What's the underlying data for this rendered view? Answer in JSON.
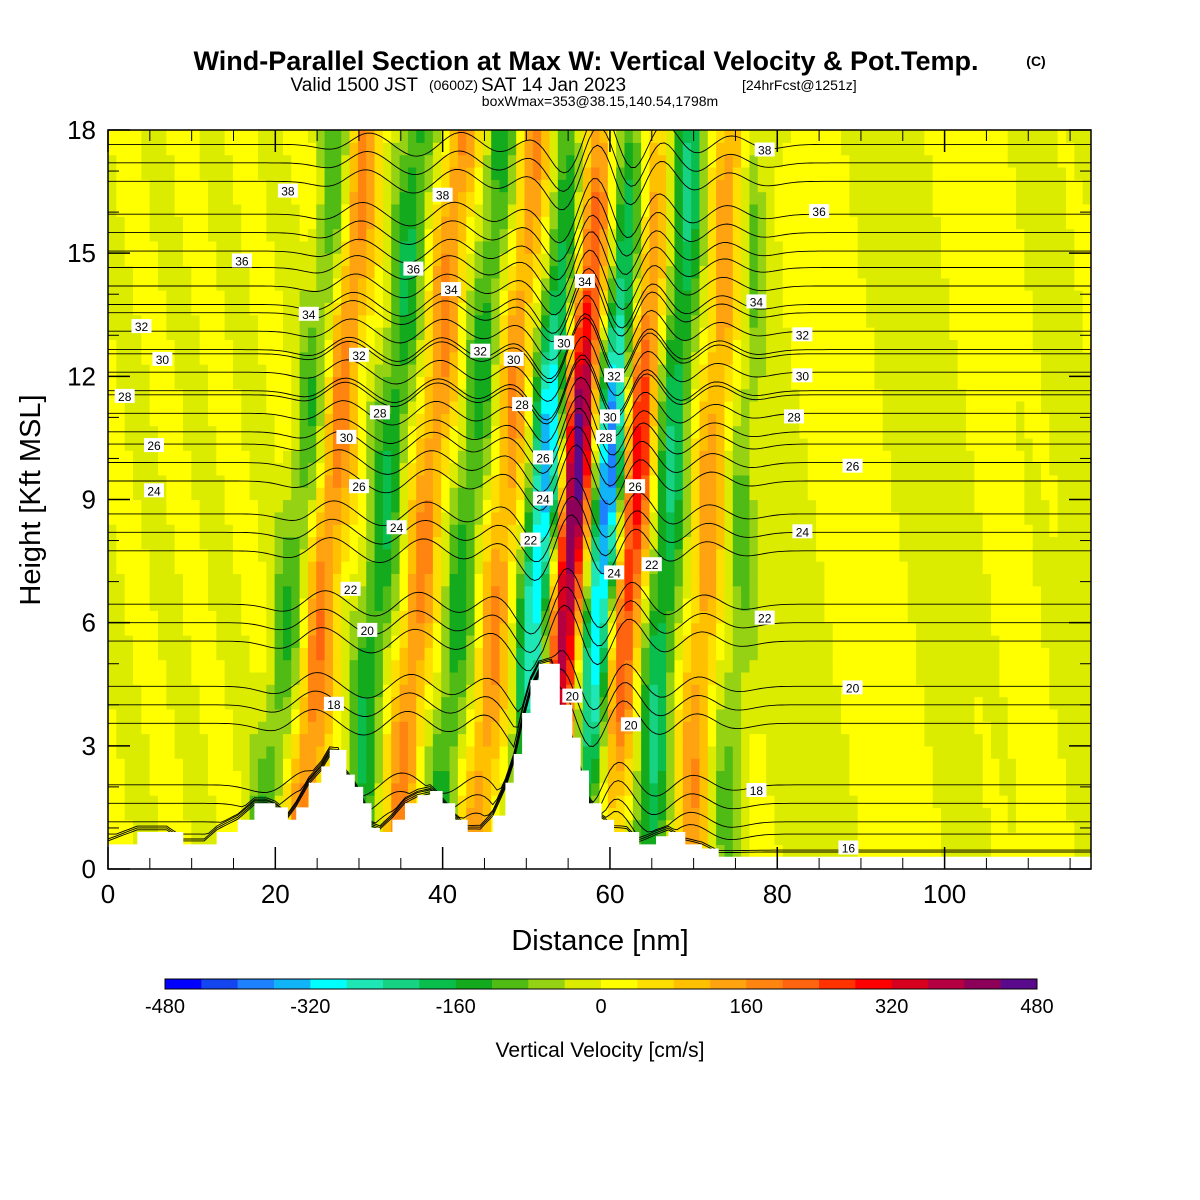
{
  "chart_data": {
    "type": "heatmap",
    "title": "Wind-Parallel Section at Max W: Vertical Velocity & Pot.Temp.",
    "title_mark": "(C)",
    "subtitle_parts": [
      "Valid 1500 JST",
      "(0600Z)",
      "SAT 14 Jan 2023",
      "[24hrFcst@1251z]"
    ],
    "subtitle2": "boxWmax=353@38.15,140.54,1798m",
    "xlabel": "Distance [nm]",
    "ylabel": "Height [Kft MSL]",
    "xlim": [
      0,
      117.5
    ],
    "ylim": [
      0,
      18
    ],
    "x_ticks": [
      "0",
      "20",
      "40",
      "60",
      "80",
      "100"
    ],
    "y_ticks": [
      "0",
      "3",
      "6",
      "9",
      "12",
      "15",
      "18"
    ],
    "colorbar": {
      "label": "Vertical Velocity [cm/s]",
      "min": -480,
      "max": 480,
      "step": 40,
      "tick_labels": [
        "-480",
        "-320",
        "-160",
        "0",
        "160",
        "320",
        "480"
      ],
      "colors": [
        "#0000ff",
        "#1446f0",
        "#1e82ff",
        "#12b4f8",
        "#00ffff",
        "#1ee6b4",
        "#17d282",
        "#0abe4e",
        "#14aa1e",
        "#50bb14",
        "#96d214",
        "#dcec00",
        "#ffff00",
        "#ffdf00",
        "#ffc000",
        "#ffa310",
        "#ff8410",
        "#ff6410",
        "#ff3200",
        "#ff0000",
        "#d7001e",
        "#b40041",
        "#8c005a",
        "#5a0a8c"
      ]
    },
    "terrain_kft": [
      [
        0,
        0.6
      ],
      [
        3.5,
        0.9
      ],
      [
        7,
        0.9
      ],
      [
        9,
        0.6
      ],
      [
        11.5,
        0.6
      ],
      [
        13,
        0.9
      ],
      [
        15.5,
        1.2
      ],
      [
        17.5,
        1.6
      ],
      [
        19,
        1.6
      ],
      [
        20,
        1.5
      ],
      [
        21.5,
        1.2
      ],
      [
        22.5,
        1.5
      ],
      [
        24,
        2.1
      ],
      [
        25.5,
        2.5
      ],
      [
        26.5,
        2.9
      ],
      [
        27.5,
        2.9
      ],
      [
        28.5,
        2.3
      ],
      [
        29.5,
        2.0
      ],
      [
        30.5,
        1.6
      ],
      [
        31.5,
        1.0
      ],
      [
        32.5,
        0.9
      ],
      [
        34,
        1.2
      ],
      [
        35.5,
        1.6
      ],
      [
        37,
        1.8
      ],
      [
        38.5,
        1.9
      ],
      [
        40,
        1.6
      ],
      [
        41.5,
        1.2
      ],
      [
        43,
        0.9
      ],
      [
        44.5,
        0.9
      ],
      [
        46,
        1.3
      ],
      [
        47.5,
        2.1
      ],
      [
        48.5,
        2.8
      ],
      [
        49.5,
        3.8
      ],
      [
        50.5,
        4.6
      ],
      [
        51.5,
        5.0
      ],
      [
        53,
        5.0
      ],
      [
        54,
        4.0
      ],
      [
        55.5,
        3.2
      ],
      [
        56.5,
        2.4
      ],
      [
        57.5,
        1.6
      ],
      [
        59,
        1.2
      ],
      [
        60.5,
        0.9
      ],
      [
        62,
        0.9
      ],
      [
        63.5,
        0.6
      ],
      [
        65.5,
        0.8
      ],
      [
        67,
        0.9
      ],
      [
        69,
        0.6
      ],
      [
        71,
        0.5
      ],
      [
        73,
        0.3
      ],
      [
        117.5,
        0.3
      ]
    ],
    "pot_temp_isolines": [
      16,
      18,
      20,
      22,
      24,
      26,
      28,
      30,
      32,
      34,
      36,
      38
    ],
    "wave_centers_nm": [
      {
        "x": 20.5,
        "w": -110,
        "tilt_nm_per_kft": 0.55
      },
      {
        "x": 24.5,
        "w": 180,
        "tilt_nm_per_kft": 0.45
      },
      {
        "x": 31.0,
        "w": -150,
        "tilt_nm_per_kft": 0.45
      },
      {
        "x": 36.0,
        "w": 160,
        "tilt_nm_per_kft": 0.45
      },
      {
        "x": 41.0,
        "w": -130,
        "tilt_nm_per_kft": 0.45
      },
      {
        "x": 45.5,
        "w": 150,
        "tilt_nm_per_kft": 0.4
      },
      {
        "x": 50.5,
        "w": -320,
        "tilt_nm_per_kft": 0.35
      },
      {
        "x": 54.0,
        "w": 430,
        "tilt_nm_per_kft": 0.35
      },
      {
        "x": 58.0,
        "w": -380,
        "tilt_nm_per_kft": 0.35
      },
      {
        "x": 61.0,
        "w": 300,
        "tilt_nm_per_kft": 0.35
      },
      {
        "x": 65.5,
        "w": -190,
        "tilt_nm_per_kft": 0.3
      },
      {
        "x": 70.5,
        "w": 140,
        "tilt_nm_per_kft": 0.3
      },
      {
        "x": 74.5,
        "w": -80,
        "tilt_nm_per_kft": 0.25
      }
    ],
    "isoline_labels": [
      {
        "text": "38",
        "x": 21.5,
        "y": 16.5
      },
      {
        "text": "38",
        "x": 40,
        "y": 16.4
      },
      {
        "text": "38",
        "x": 78.5,
        "y": 17.5
      },
      {
        "text": "36",
        "x": 16,
        "y": 14.8
      },
      {
        "text": "36",
        "x": 36.5,
        "y": 14.6
      },
      {
        "text": "36",
        "x": 85,
        "y": 16.0
      },
      {
        "text": "34",
        "x": 24,
        "y": 13.5
      },
      {
        "text": "34",
        "x": 41,
        "y": 14.1
      },
      {
        "text": "34",
        "x": 57,
        "y": 14.3
      },
      {
        "text": "34",
        "x": 77.5,
        "y": 13.8
      },
      {
        "text": "32",
        "x": 4,
        "y": 13.2
      },
      {
        "text": "32",
        "x": 30,
        "y": 12.5
      },
      {
        "text": "32",
        "x": 44.5,
        "y": 12.6
      },
      {
        "text": "32",
        "x": 60.5,
        "y": 12.0
      },
      {
        "text": "32",
        "x": 83,
        "y": 13.0
      },
      {
        "text": "30",
        "x": 6.5,
        "y": 12.4
      },
      {
        "text": "30",
        "x": 28.5,
        "y": 10.5
      },
      {
        "text": "30",
        "x": 48.5,
        "y": 12.4
      },
      {
        "text": "30",
        "x": 54.5,
        "y": 12.8
      },
      {
        "text": "30",
        "x": 60,
        "y": 11.0
      },
      {
        "text": "30",
        "x": 83,
        "y": 12.0
      },
      {
        "text": "28",
        "x": 2,
        "y": 11.5
      },
      {
        "text": "28",
        "x": 32.5,
        "y": 11.1
      },
      {
        "text": "28",
        "x": 49.5,
        "y": 11.3
      },
      {
        "text": "28",
        "x": 59.5,
        "y": 10.5
      },
      {
        "text": "28",
        "x": 82,
        "y": 11.0
      },
      {
        "text": "26",
        "x": 5.5,
        "y": 10.3
      },
      {
        "text": "26",
        "x": 30,
        "y": 9.3
      },
      {
        "text": "26",
        "x": 52,
        "y": 10.0
      },
      {
        "text": "26",
        "x": 63,
        "y": 9.3
      },
      {
        "text": "26",
        "x": 89,
        "y": 9.8
      },
      {
        "text": "24",
        "x": 5.5,
        "y": 9.2
      },
      {
        "text": "24",
        "x": 34.5,
        "y": 8.3
      },
      {
        "text": "24",
        "x": 52,
        "y": 9.0
      },
      {
        "text": "24",
        "x": 60.5,
        "y": 7.2
      },
      {
        "text": "24",
        "x": 83,
        "y": 8.2
      },
      {
        "text": "22",
        "x": 29,
        "y": 6.8
      },
      {
        "text": "22",
        "x": 50.5,
        "y": 8.0
      },
      {
        "text": "22",
        "x": 65,
        "y": 7.4
      },
      {
        "text": "22",
        "x": 78.5,
        "y": 6.1
      },
      {
        "text": "20",
        "x": 31,
        "y": 5.8
      },
      {
        "text": "20",
        "x": 55.5,
        "y": 4.2
      },
      {
        "text": "20",
        "x": 62.5,
        "y": 3.5
      },
      {
        "text": "20",
        "x": 89,
        "y": 4.4
      },
      {
        "text": "18",
        "x": 27,
        "y": 4.0
      },
      {
        "text": "18",
        "x": 77.5,
        "y": 1.9
      },
      {
        "text": "16",
        "x": 88.5,
        "y": 0.5
      }
    ]
  }
}
